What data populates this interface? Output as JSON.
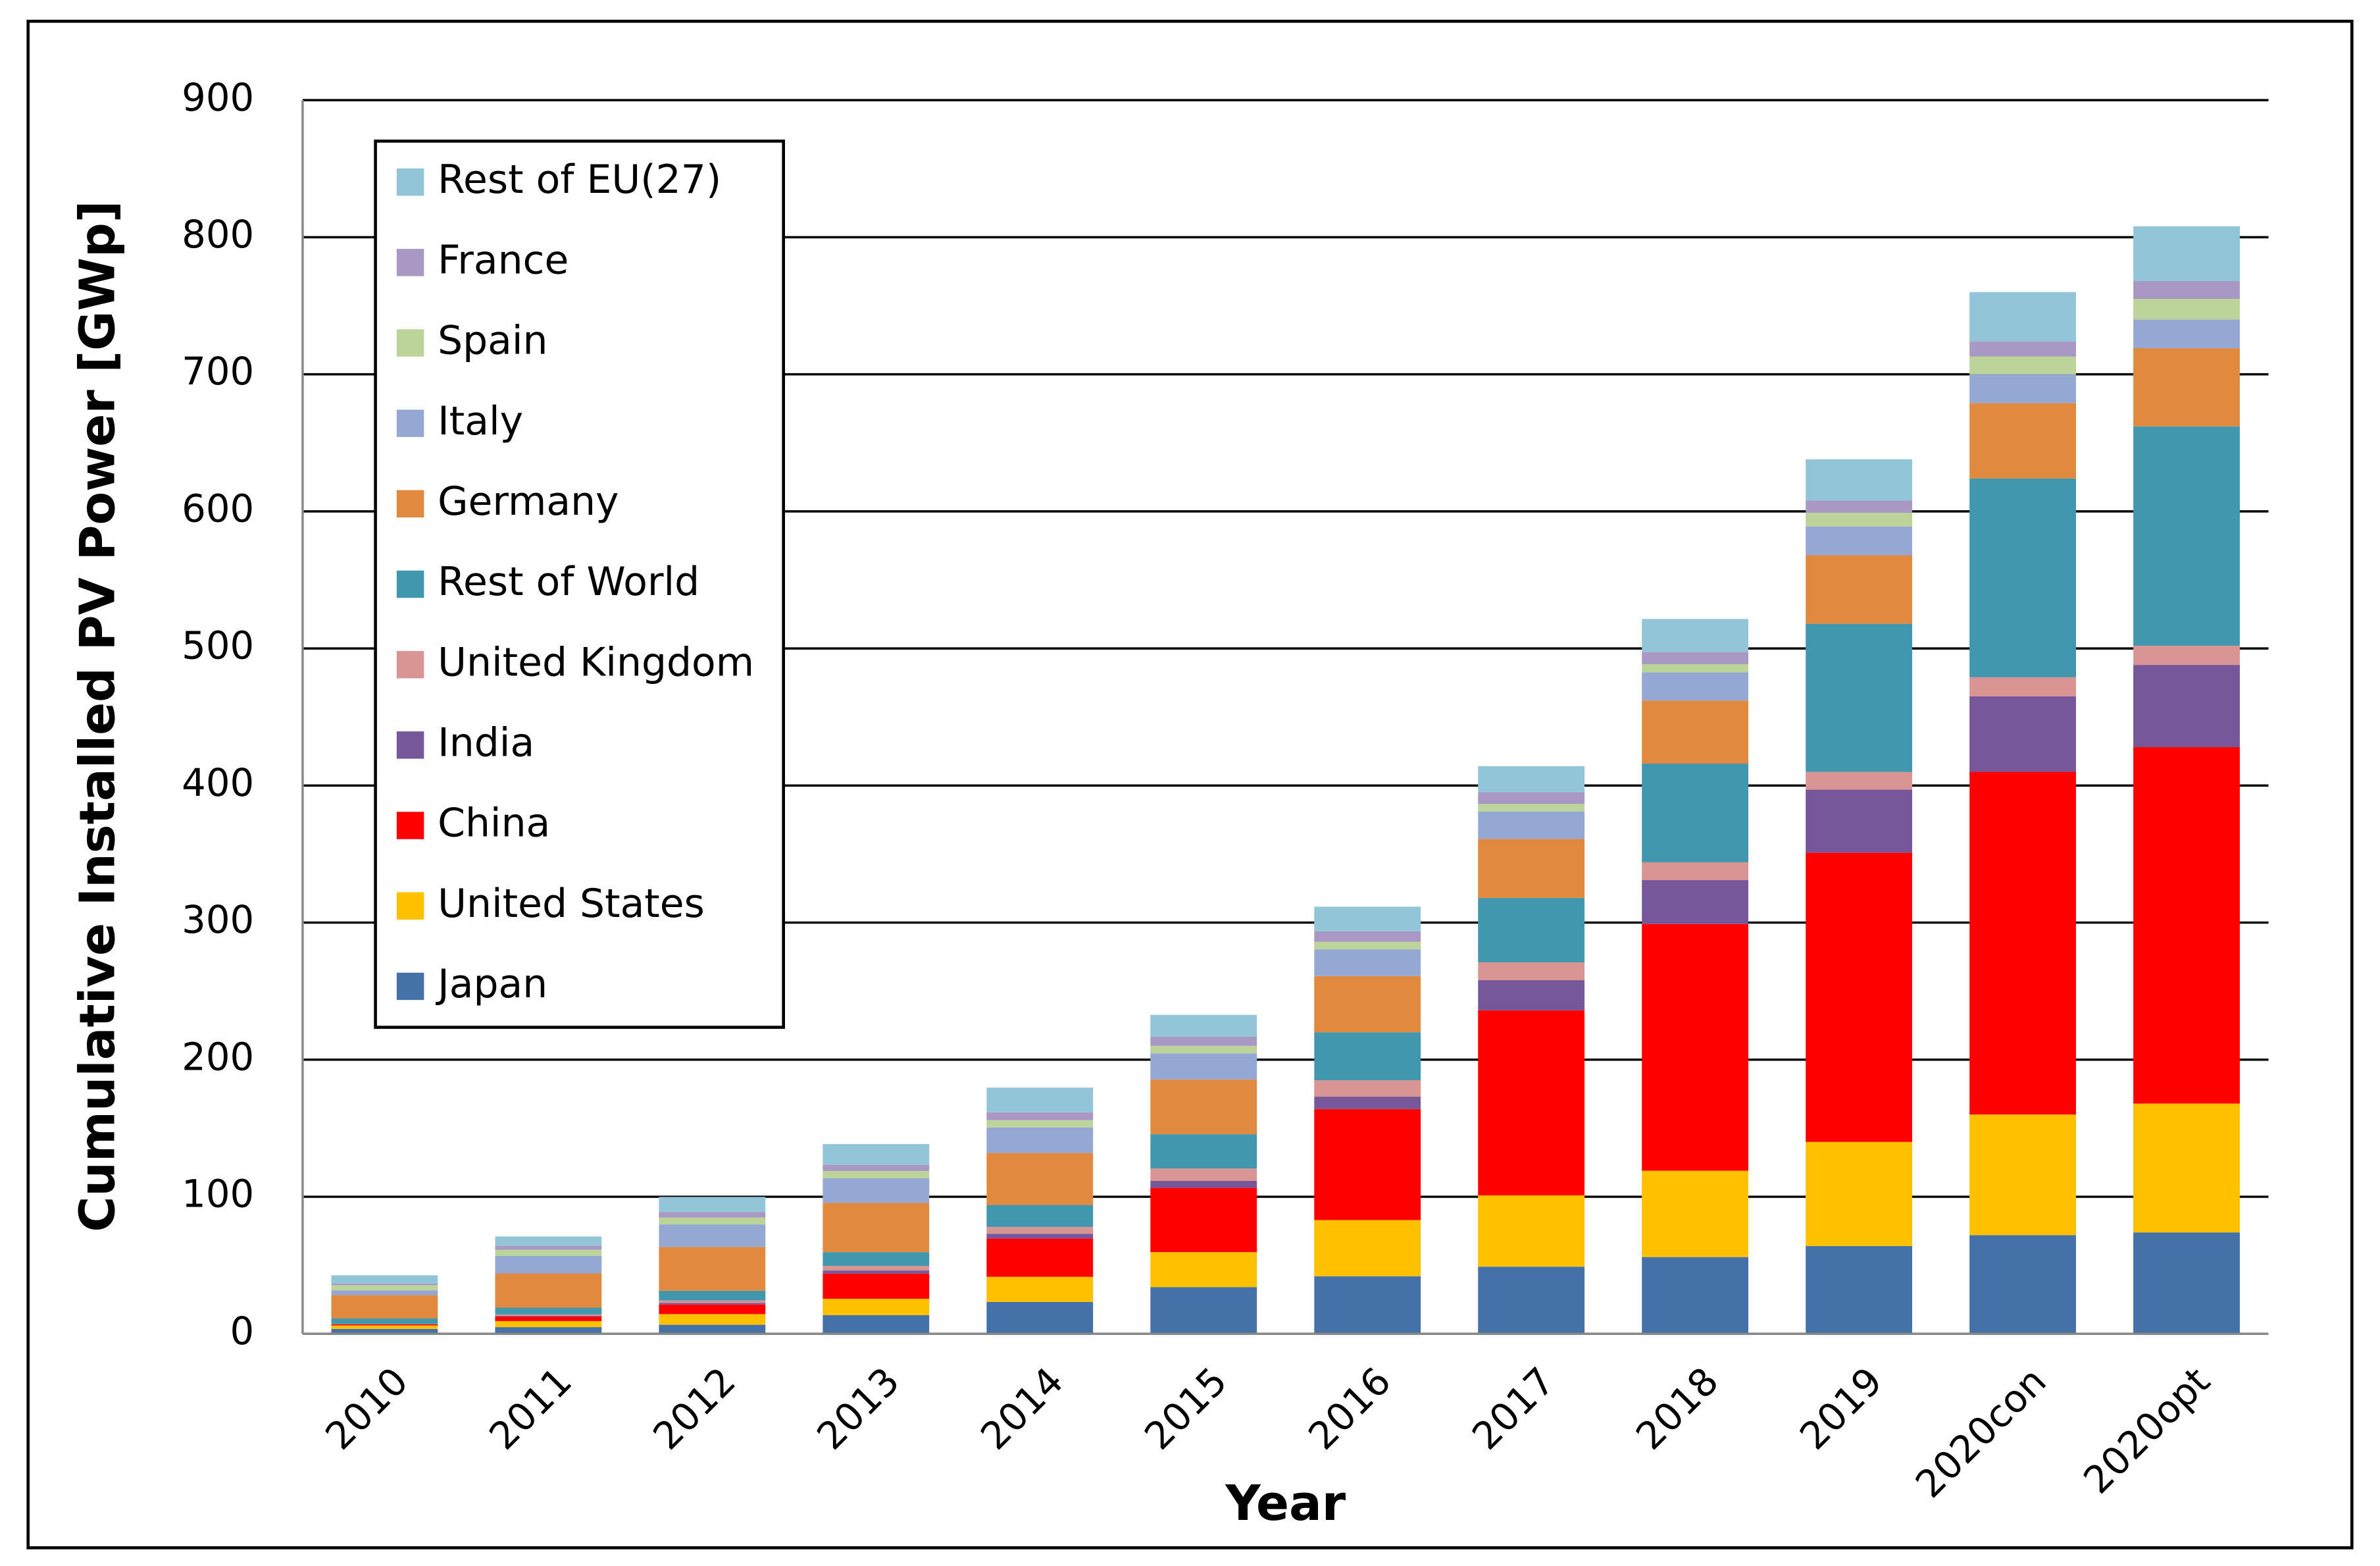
{
  "chart_data": {
    "type": "stacked_bar",
    "x_label": "Year",
    "y_label": "Cumulative Installed PV Power [GWp]",
    "categories": [
      "2010",
      "2011",
      "2012",
      "2013",
      "2014",
      "2015",
      "2016",
      "2017",
      "2018",
      "2019",
      "2020con",
      "2020opt"
    ],
    "ylim": [
      0,
      900
    ],
    "yticks": [
      0,
      100,
      200,
      300,
      400,
      500,
      600,
      700,
      800,
      900
    ],
    "grid": true,
    "legend": "upper-left",
    "series": [
      {
        "name": "Japan",
        "color": "#4472a8",
        "values": [
          3.6,
          4.9,
          6.6,
          13.6,
          23.3,
          34,
          42,
          49,
          56,
          64,
          72,
          74
        ]
      },
      {
        "name": "United States",
        "color": "#ffc000",
        "values": [
          2.5,
          4.4,
          7.8,
          12,
          18.3,
          25.6,
          41,
          52,
          63,
          76,
          88,
          94
        ]
      },
      {
        "name": "China",
        "color": "#ff0000",
        "values": [
          0.9,
          3.3,
          7,
          18.3,
          28,
          47,
          81,
          135,
          180,
          211,
          250,
          260
        ]
      },
      {
        "name": "India",
        "color": "#76589a",
        "values": [
          0.1,
          0.5,
          1.2,
          2.3,
          3.4,
          5,
          9,
          22,
          32,
          46,
          55,
          60
        ]
      },
      {
        "name": "United Kingdom",
        "color": "#d99594",
        "values": [
          0.1,
          1,
          1.8,
          3.4,
          5,
          9,
          12,
          13,
          13,
          13,
          14,
          14
        ]
      },
      {
        "name": "Rest of World",
        "color": "#4197ae",
        "values": [
          4,
          5,
          7,
          10,
          16,
          25,
          35,
          47,
          72,
          108,
          145,
          160
        ]
      },
      {
        "name": "Germany",
        "color": "#e08a3f",
        "values": [
          17,
          25,
          32,
          36,
          38,
          40,
          41,
          43,
          46,
          50,
          55,
          57
        ]
      },
      {
        "name": "Italy",
        "color": "#95a8d4",
        "values": [
          3.5,
          12.8,
          16.4,
          17.9,
          18.5,
          19,
          19.5,
          20,
          20.5,
          21,
          21,
          21
        ]
      },
      {
        "name": "Spain",
        "color": "#bcd39a",
        "values": [
          3.8,
          4.5,
          5.1,
          5.3,
          5.4,
          5.5,
          5.5,
          5.6,
          6,
          10,
          13,
          15
        ]
      },
      {
        "name": "France",
        "color": "#a998c4",
        "values": [
          1.2,
          2.8,
          4,
          4.6,
          5.7,
          6.6,
          7.6,
          8.5,
          9,
          9,
          11,
          13
        ]
      },
      {
        "name": "Rest of EU(27)",
        "color": "#92c5d8",
        "values": [
          6,
          6.8,
          11,
          15,
          18,
          16,
          18,
          19,
          24,
          30,
          36,
          40
        ]
      }
    ]
  }
}
